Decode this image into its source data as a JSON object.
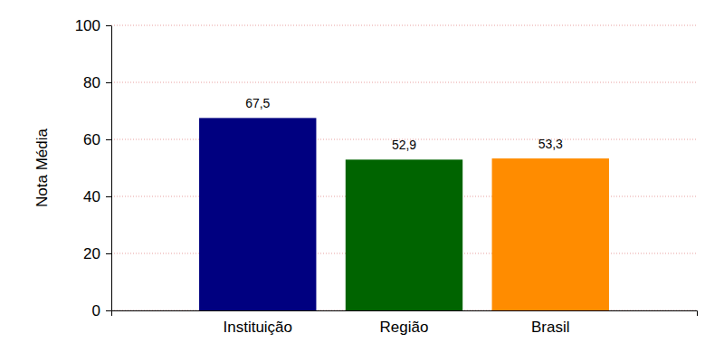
{
  "chart_data": {
    "type": "bar",
    "y_label": "Nota Média",
    "categories": [
      "Instituição",
      "Região",
      "Brasil"
    ],
    "values": [
      67.5,
      52.9,
      53.3
    ],
    "value_labels": [
      "67,5",
      "52,9",
      "53,3"
    ],
    "colors": [
      "#000080",
      "#006400",
      "#ff8c00"
    ],
    "ylim": [
      0,
      100
    ],
    "yticks": [
      0,
      20,
      40,
      60,
      80,
      100
    ],
    "grid": true,
    "data_labels": true
  }
}
